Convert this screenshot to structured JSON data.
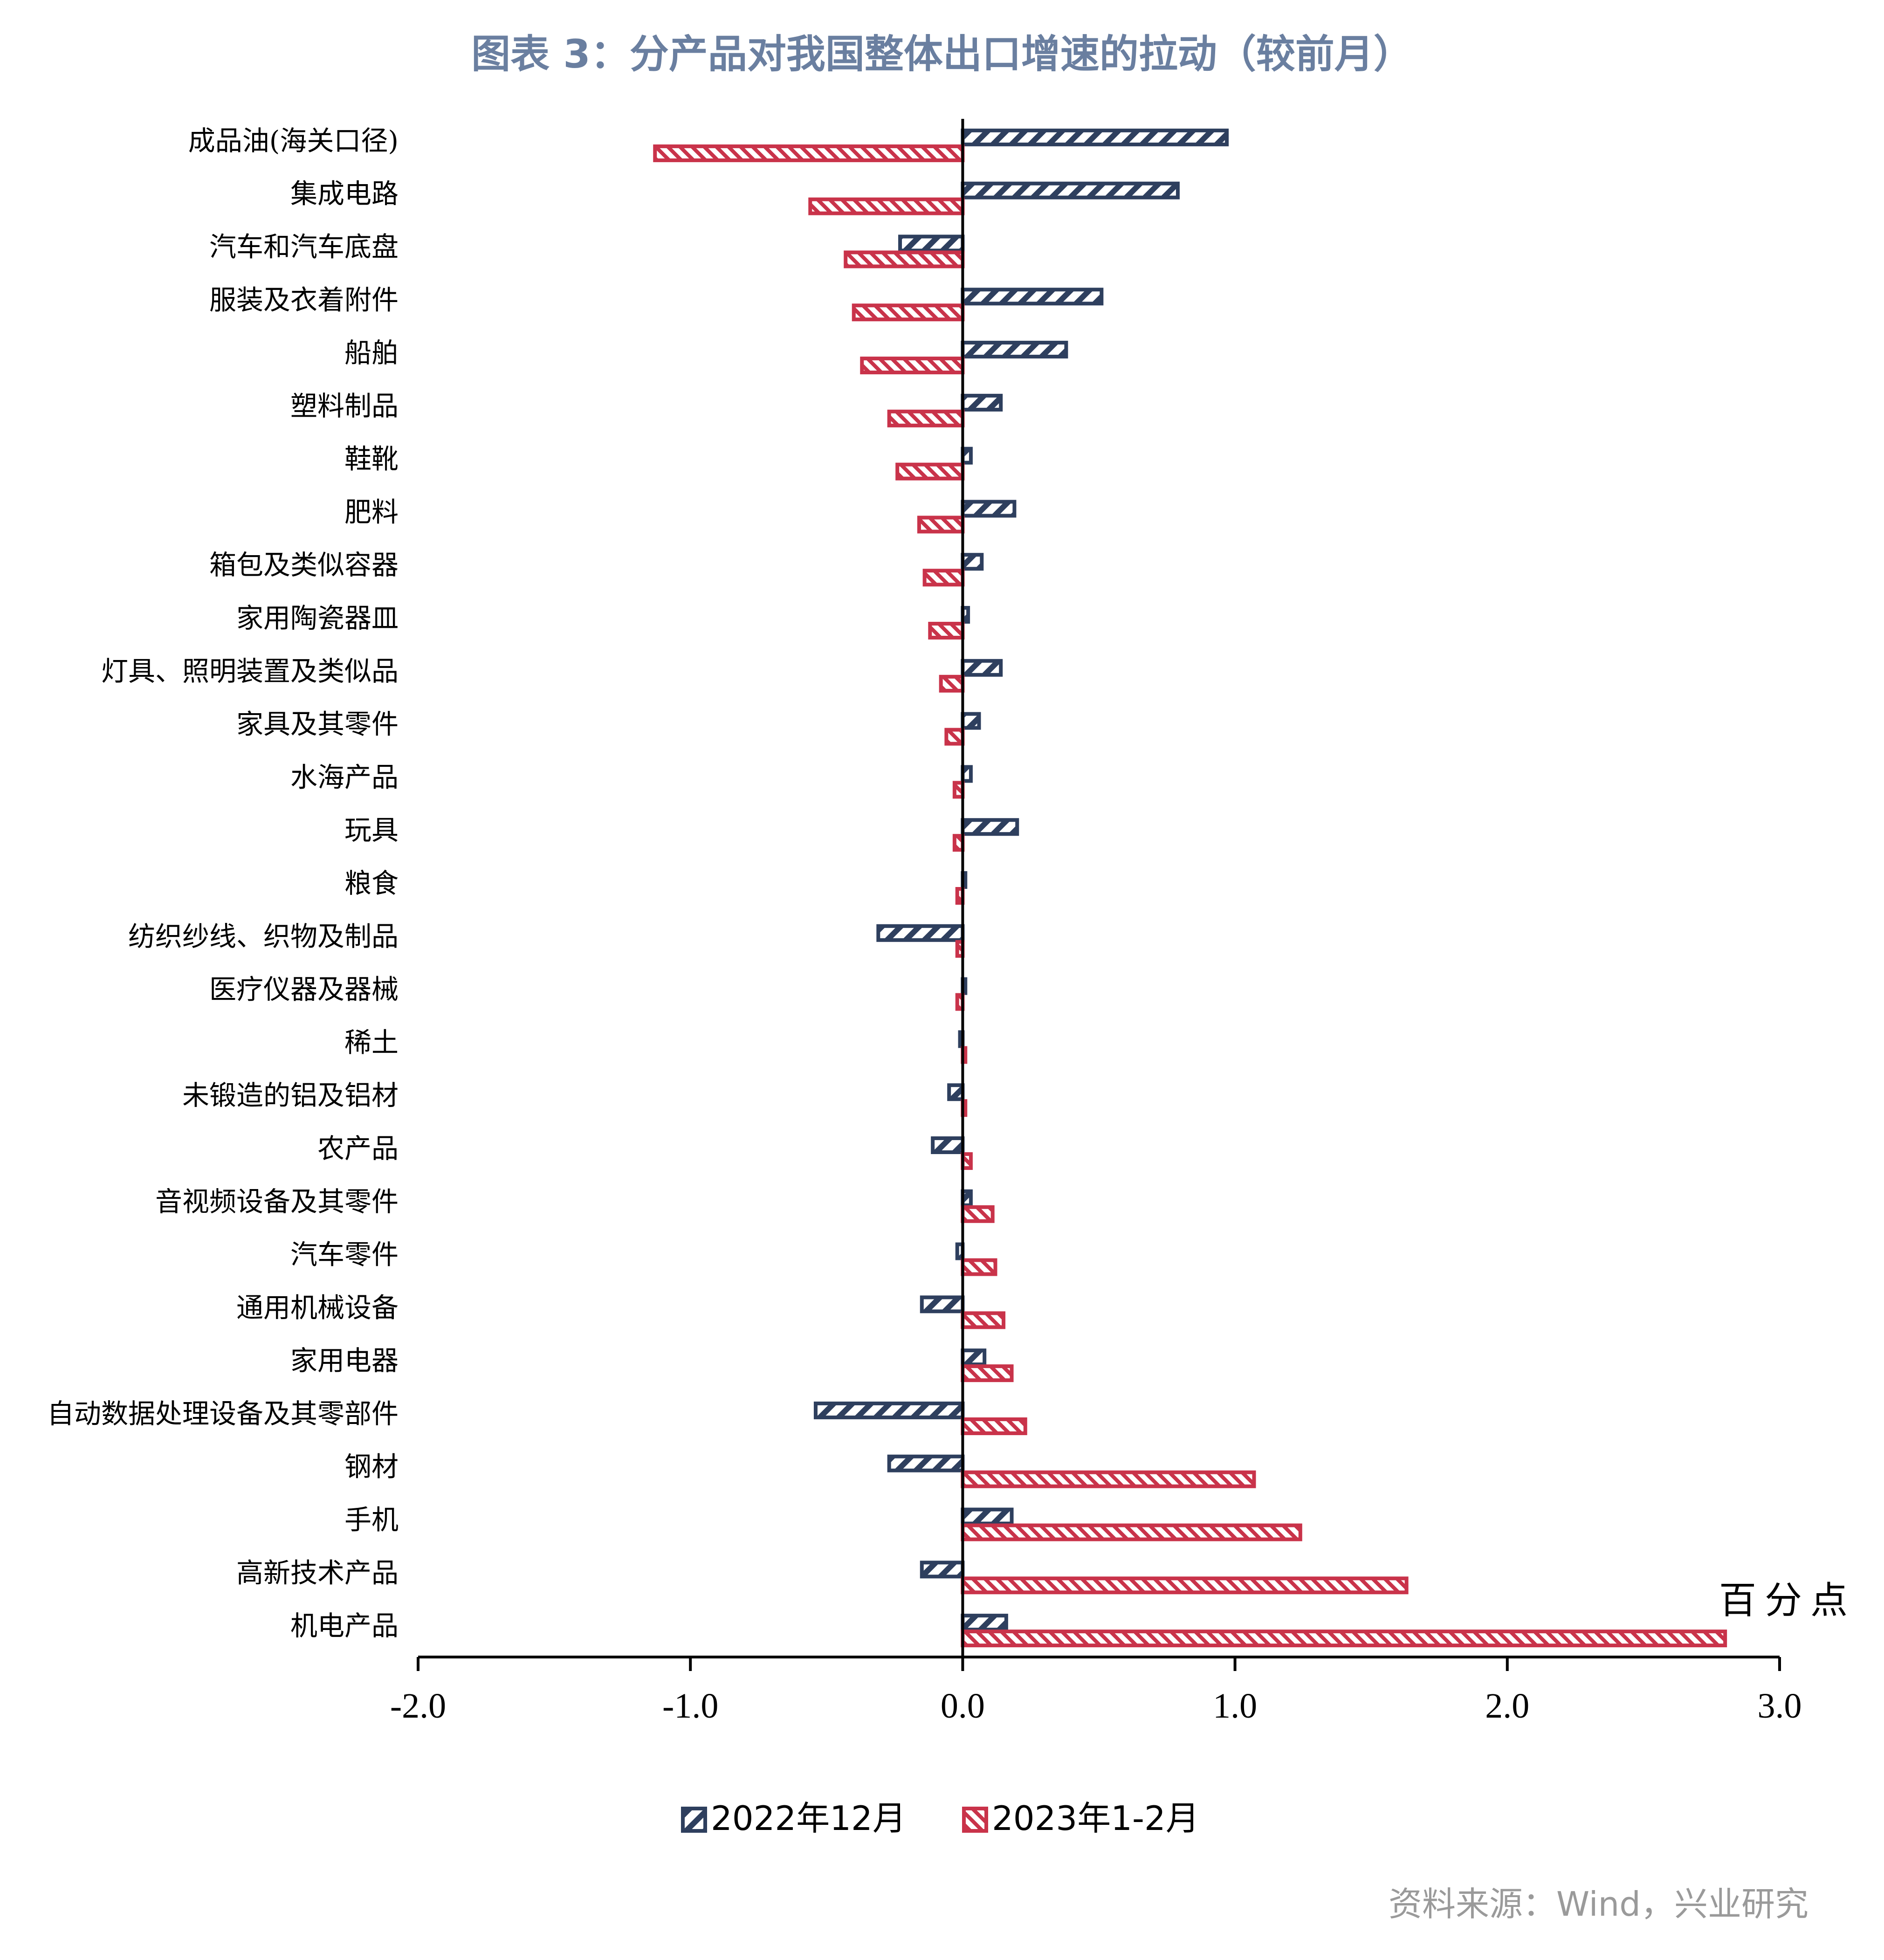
{
  "title": "图表 3：分产品对我国整体出口增速的拉动（较前月）",
  "source": "资料来源：Wind，兴业研究",
  "unit_label": "百分点",
  "colors": {
    "title": "#6a7fa0",
    "series_a": "#2e3f5e",
    "series_b": "#c9334a",
    "axis": "#000000",
    "source": "#9a9a9a"
  },
  "chart_data": {
    "type": "bar",
    "orientation": "horizontal",
    "categories": [
      "成品油(海关口径)",
      "集成电路",
      "汽车和汽车底盘",
      "服装及衣着附件",
      "船舶",
      "塑料制品",
      "鞋靴",
      "肥料",
      "箱包及类似容器",
      "家用陶瓷器皿",
      "灯具、照明装置及类似品",
      "家具及其零件",
      "水海产品",
      "玩具",
      "粮食",
      "纺织纱线、织物及制品",
      "医疗仪器及器械",
      "稀土",
      "未锻造的铝及铝材",
      "农产品",
      "音视频设备及其零件",
      "汽车零件",
      "通用机械设备",
      "家用电器",
      "自动数据处理设备及其零部件",
      "钢材",
      "手机",
      "高新技术产品",
      "机电产品"
    ],
    "series": [
      {
        "name": "2022年12月",
        "values": [
          0.97,
          0.79,
          -0.23,
          0.51,
          0.38,
          0.14,
          0.03,
          0.19,
          0.07,
          0.02,
          0.14,
          0.06,
          0.03,
          0.2,
          0.01,
          -0.31,
          0.01,
          -0.01,
          -0.05,
          -0.11,
          0.03,
          -0.02,
          -0.15,
          0.08,
          -0.54,
          -0.27,
          0.18,
          -0.15,
          0.16
        ]
      },
      {
        "name": "2023年1-2月",
        "values": [
          -1.13,
          -0.56,
          -0.43,
          -0.4,
          -0.37,
          -0.27,
          -0.24,
          -0.16,
          -0.14,
          -0.12,
          -0.08,
          -0.06,
          -0.03,
          -0.03,
          -0.02,
          -0.02,
          -0.02,
          0.01,
          0.01,
          0.03,
          0.11,
          0.12,
          0.15,
          0.18,
          0.23,
          1.07,
          1.24,
          1.63,
          2.8
        ]
      }
    ],
    "xlim": [
      -2.0,
      3.0
    ],
    "xticks": [
      "-2.0",
      "-1.0",
      "0.0",
      "1.0",
      "2.0",
      "3.0"
    ],
    "legend_position": "bottom"
  }
}
